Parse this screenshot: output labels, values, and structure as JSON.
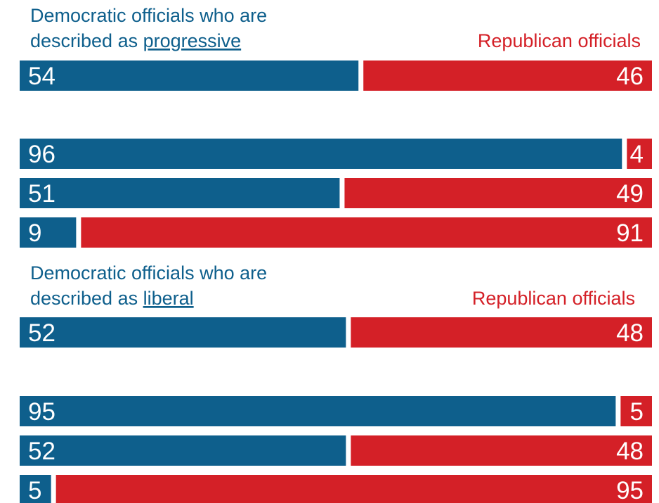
{
  "colors": {
    "democratic": "#0e5f8c",
    "republican": "#d42027"
  },
  "chart_data": [
    {
      "type": "bar",
      "stacked": true,
      "orientation": "horizontal",
      "dem_title_line1": "Democratic officials who are",
      "dem_title_prefix": "described as ",
      "dem_title_term": "progressive",
      "rep_title": "Republican officials",
      "series": [
        {
          "name": "Democratic officials who are described as progressive",
          "values": [
            54,
            96,
            51,
            9
          ]
        },
        {
          "name": "Republican officials",
          "values": [
            46,
            4,
            49,
            91
          ]
        }
      ]
    },
    {
      "type": "bar",
      "stacked": true,
      "orientation": "horizontal",
      "dem_title_line1": "Democratic officials who are",
      "dem_title_prefix": "described as ",
      "dem_title_term": "liberal",
      "rep_title": "Republican officials",
      "series": [
        {
          "name": "Democratic officials who are described as liberal",
          "values": [
            52,
            95,
            52,
            5
          ]
        },
        {
          "name": "Republican officials",
          "values": [
            48,
            5,
            48,
            95
          ]
        }
      ]
    }
  ]
}
